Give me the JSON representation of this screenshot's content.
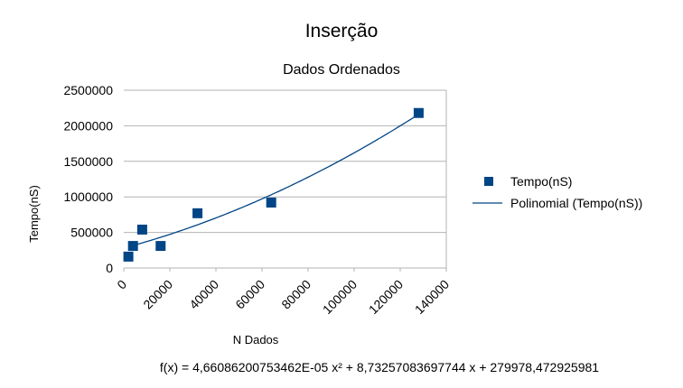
{
  "chart_data": {
    "type": "scatter",
    "title": "Inserção",
    "subtitle": "Dados Ordenados",
    "xlabel": "N Dados",
    "ylabel": "Tempo(nS)",
    "xlim": [
      0,
      140000
    ],
    "ylim": [
      0,
      2500000
    ],
    "x_ticks": [
      0,
      20000,
      40000,
      60000,
      80000,
      100000,
      120000,
      140000
    ],
    "y_ticks": [
      0,
      500000,
      1000000,
      1500000,
      2000000,
      2500000
    ],
    "grid": true,
    "legend_position": "right",
    "series": [
      {
        "name": "Tempo(nS)",
        "marker": "square",
        "color": "#004586",
        "points": [
          {
            "x": 2000,
            "y": 160000
          },
          {
            "x": 4000,
            "y": 310000
          },
          {
            "x": 8000,
            "y": 540000
          },
          {
            "x": 16000,
            "y": 310000
          },
          {
            "x": 32000,
            "y": 770000
          },
          {
            "x": 64000,
            "y": 920000
          },
          {
            "x": 128000,
            "y": 2180000
          }
        ]
      }
    ],
    "trendline": {
      "name": "Polinomial (Tempo(nS))",
      "type": "polynomial",
      "color": "#004586",
      "coefficients": [
        279978.472925981,
        8.73257083697744,
        4.66086200753462e-05
      ],
      "x_range": [
        2000,
        128000
      ],
      "equation": "f(x) = 4,66086200753462E-05 x² + 8,73257083697744 x + 279978,472925981"
    }
  }
}
